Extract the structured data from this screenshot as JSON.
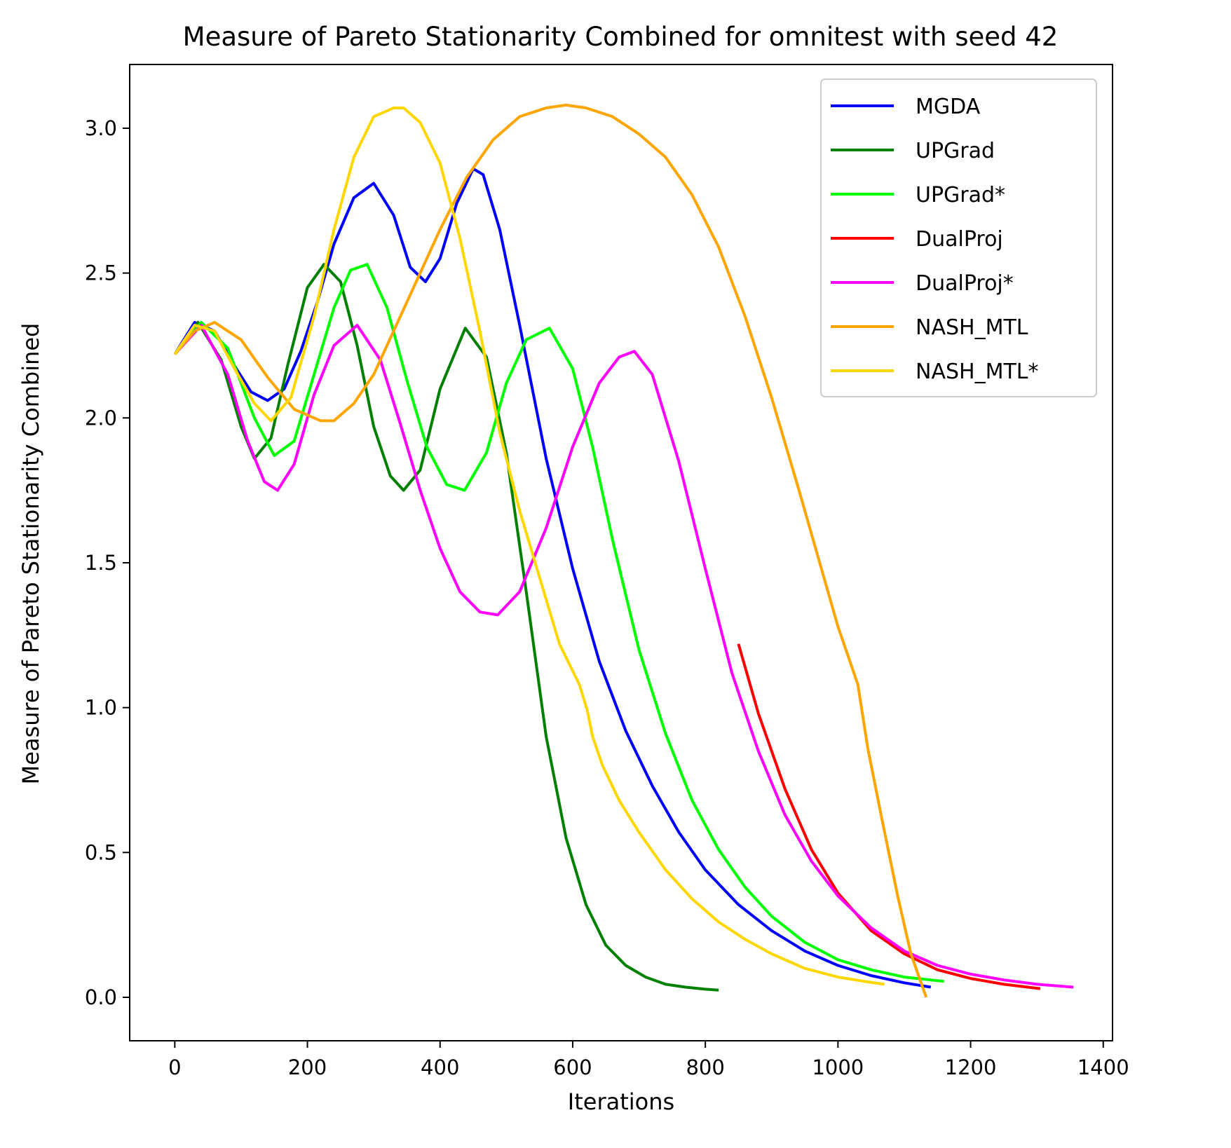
{
  "chart_data": {
    "type": "line",
    "title": "Measure of Pareto Stationarity Combined for omnitest with seed 42",
    "xlabel": "Iterations",
    "ylabel": "Measure of Pareto Stationarity Combined",
    "xlim": [
      -68,
      1414
    ],
    "ylim": [
      -0.15,
      3.22
    ],
    "xticks": [
      0,
      200,
      400,
      600,
      800,
      1000,
      1200,
      1400
    ],
    "yticks": [
      0.0,
      0.5,
      1.0,
      1.5,
      2.0,
      2.5,
      3.0
    ],
    "xtick_labels": [
      "0",
      "200",
      "400",
      "600",
      "800",
      "1000",
      "1200",
      "1400"
    ],
    "ytick_labels": [
      "0.0",
      "0.5",
      "1.0",
      "1.5",
      "2.0",
      "2.5",
      "3.0"
    ],
    "grid": false,
    "legend_position": "top-right",
    "series": [
      {
        "name": "MGDA",
        "color": "#0000ff",
        "x": [
          0,
          30,
          60,
          90,
          115,
          140,
          165,
          190,
          215,
          240,
          270,
          300,
          330,
          355,
          378,
          400,
          425,
          450,
          465,
          490,
          520,
          560,
          600,
          640,
          680,
          720,
          760,
          800,
          850,
          900,
          950,
          1000,
          1050,
          1100,
          1140
        ],
        "y": [
          2.22,
          2.33,
          2.3,
          2.18,
          2.09,
          2.06,
          2.1,
          2.23,
          2.4,
          2.6,
          2.76,
          2.81,
          2.7,
          2.52,
          2.47,
          2.55,
          2.74,
          2.86,
          2.84,
          2.65,
          2.32,
          1.86,
          1.48,
          1.16,
          0.92,
          0.73,
          0.57,
          0.44,
          0.32,
          0.23,
          0.16,
          0.11,
          0.075,
          0.05,
          0.035
        ]
      },
      {
        "name": "UPGrad",
        "color": "#008000",
        "x": [
          0,
          35,
          70,
          100,
          120,
          145,
          170,
          200,
          225,
          250,
          275,
          300,
          325,
          345,
          370,
          400,
          438,
          470,
          500,
          530,
          560,
          590,
          620,
          650,
          680,
          710,
          740,
          770,
          800,
          820
        ],
        "y": [
          2.22,
          2.33,
          2.2,
          1.97,
          1.86,
          1.93,
          2.18,
          2.45,
          2.53,
          2.47,
          2.25,
          1.97,
          1.8,
          1.75,
          1.82,
          2.1,
          2.31,
          2.21,
          1.88,
          1.4,
          0.9,
          0.55,
          0.32,
          0.18,
          0.11,
          0.07,
          0.045,
          0.035,
          0.028,
          0.025
        ]
      },
      {
        "name": "UPGrad*",
        "color": "#00ff00",
        "x": [
          0,
          40,
          80,
          120,
          150,
          180,
          210,
          240,
          265,
          290,
          320,
          350,
          380,
          410,
          437,
          470,
          500,
          530,
          565,
          600,
          630,
          660,
          700,
          740,
          780,
          820,
          860,
          900,
          950,
          1000,
          1050,
          1100,
          1160
        ],
        "y": [
          2.22,
          2.33,
          2.24,
          2.0,
          1.87,
          1.92,
          2.15,
          2.38,
          2.51,
          2.53,
          2.38,
          2.13,
          1.9,
          1.77,
          1.75,
          1.88,
          2.12,
          2.27,
          2.31,
          2.17,
          1.9,
          1.58,
          1.2,
          0.91,
          0.68,
          0.51,
          0.38,
          0.28,
          0.19,
          0.13,
          0.095,
          0.07,
          0.055
        ]
      },
      {
        "name": "DualProj",
        "color": "#ff0000",
        "x": [
          850,
          880,
          920,
          960,
          1000,
          1050,
          1100,
          1150,
          1200,
          1250,
          1305
        ],
        "y": [
          1.22,
          0.98,
          0.72,
          0.51,
          0.36,
          0.23,
          0.15,
          0.095,
          0.065,
          0.045,
          0.03
        ]
      },
      {
        "name": "DualProj*",
        "color": "#ff00ff",
        "x": [
          0,
          40,
          80,
          110,
          135,
          155,
          180,
          210,
          240,
          275,
          310,
          340,
          370,
          400,
          430,
          460,
          487,
          520,
          560,
          600,
          640,
          670,
          693,
          720,
          760,
          800,
          840,
          880,
          920,
          960,
          1000,
          1050,
          1100,
          1150,
          1200,
          1250,
          1300,
          1355
        ],
        "y": [
          2.22,
          2.32,
          2.15,
          1.92,
          1.78,
          1.75,
          1.84,
          2.08,
          2.25,
          2.32,
          2.2,
          1.98,
          1.75,
          1.55,
          1.4,
          1.33,
          1.32,
          1.4,
          1.62,
          1.9,
          2.12,
          2.21,
          2.23,
          2.15,
          1.85,
          1.48,
          1.12,
          0.85,
          0.63,
          0.47,
          0.35,
          0.24,
          0.16,
          0.11,
          0.08,
          0.06,
          0.045,
          0.035
        ]
      },
      {
        "name": "NASH_MTL",
        "color": "#ffa500",
        "x": [
          0,
          30,
          60,
          100,
          140,
          180,
          220,
          240,
          270,
          300,
          330,
          360,
          400,
          440,
          480,
          520,
          560,
          590,
          620,
          660,
          700,
          740,
          780,
          820,
          860,
          900,
          940,
          980,
          1000,
          1030,
          1045,
          1065,
          1090,
          1110,
          1133
        ],
        "y": [
          2.22,
          2.3,
          2.33,
          2.27,
          2.14,
          2.03,
          1.99,
          1.99,
          2.05,
          2.15,
          2.3,
          2.45,
          2.65,
          2.83,
          2.96,
          3.04,
          3.07,
          3.08,
          3.07,
          3.04,
          2.98,
          2.9,
          2.77,
          2.59,
          2.35,
          2.07,
          1.76,
          1.44,
          1.28,
          1.08,
          0.86,
          0.63,
          0.35,
          0.15,
          0.0
        ]
      },
      {
        "name": "NASH_MTL*",
        "color": "#ffd700",
        "x": [
          0,
          30,
          60,
          90,
          120,
          145,
          175,
          210,
          240,
          270,
          300,
          330,
          345,
          370,
          400,
          430,
          460,
          490,
          520,
          550,
          580,
          610,
          622,
          630,
          645,
          670,
          700,
          740,
          780,
          820,
          860,
          900,
          950,
          1000,
          1040,
          1070
        ],
        "y": [
          2.22,
          2.32,
          2.3,
          2.17,
          2.05,
          1.99,
          2.07,
          2.35,
          2.65,
          2.9,
          3.04,
          3.07,
          3.07,
          3.02,
          2.88,
          2.62,
          2.3,
          1.95,
          1.68,
          1.45,
          1.22,
          1.08,
          0.99,
          0.9,
          0.8,
          0.68,
          0.57,
          0.44,
          0.34,
          0.26,
          0.2,
          0.15,
          0.1,
          0.07,
          0.055,
          0.045
        ]
      }
    ]
  }
}
